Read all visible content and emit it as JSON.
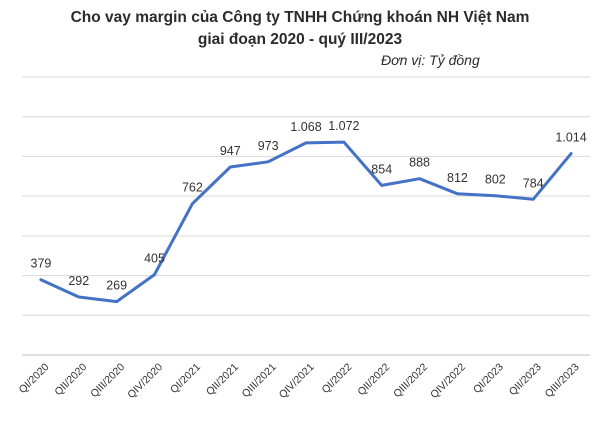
{
  "chart_data": {
    "type": "line",
    "title": "Cho vay margin của Công ty TNHH Chứng khoán NH Việt Nam",
    "subtitle": "giai đoạn 2020 - quý III/2023",
    "unit_note": "Đơn vị: Tỷ đồng",
    "categories": [
      "QI/2020",
      "QII/2020",
      "QIII/2020",
      "QIV/2020",
      "QI/2021",
      "QII/2021",
      "QIII/2021",
      "QIV/2021",
      "QI/2022",
      "QII/2022",
      "QIII/2022",
      "QIV/2022",
      "QI/2023",
      "QII/2023",
      "QIII/2023"
    ],
    "values": [
      379,
      292,
      269,
      405,
      762,
      947,
      973,
      1068,
      1072,
      854,
      888,
      812,
      802,
      784,
      1014
    ],
    "data_labels": [
      "379",
      "292",
      "269",
      "405",
      "762",
      "947",
      "973",
      "1.068",
      "1.072",
      "854",
      "888",
      "812",
      "802",
      "784",
      "1.014"
    ],
    "ylim": [
      0,
      1400
    ],
    "grid": true,
    "line_color": "#4472C4",
    "grid_color": "#d9d9d9",
    "legend": "none"
  }
}
